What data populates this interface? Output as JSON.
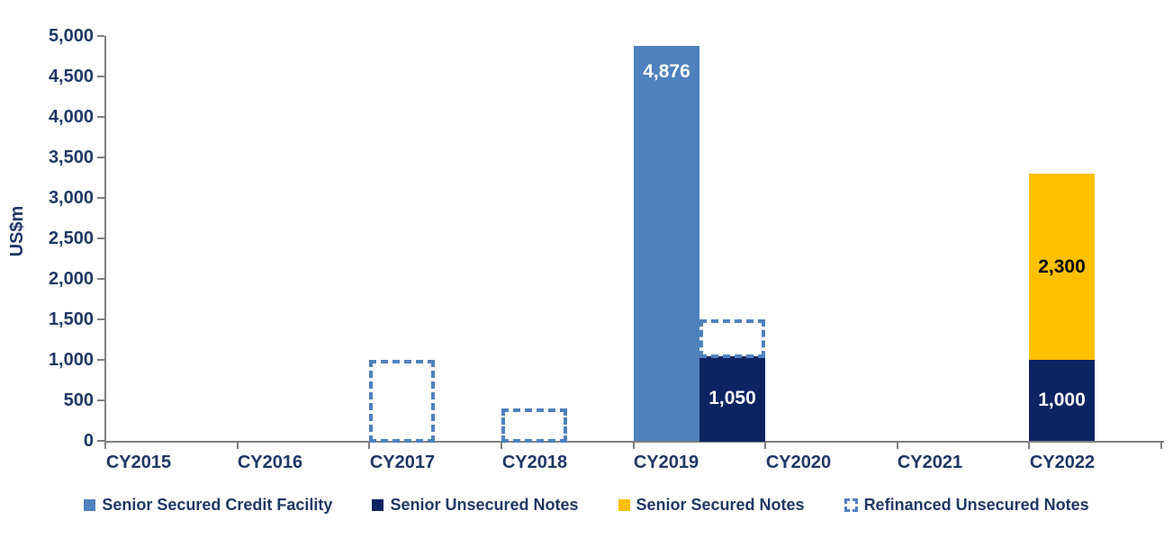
{
  "colors": {
    "steel_blue": "#4F81BD",
    "navy": "#0D2462",
    "gold": "#FFC000",
    "dashed_outline": "#4F81BD",
    "text_navy": "#1F3864",
    "axis_gray": "#808080",
    "background": "#FFFFFF"
  },
  "chart_data": {
    "type": "bar",
    "subtype": "clustered-stacked",
    "title": "",
    "xlabel": "",
    "ylabel": "US$m",
    "grid": false,
    "legend_position": "bottom",
    "categories": [
      "CY2015",
      "CY2016",
      "CY2017",
      "CY2018",
      "CY2019",
      "CY2020",
      "CY2021",
      "CY2022"
    ],
    "ylim": [
      0,
      5000
    ],
    "ytick_step": 500,
    "yticks": [
      "0",
      "500",
      "1,000",
      "1,500",
      "2,000",
      "2,500",
      "3,000",
      "3,500",
      "4,000",
      "4,500",
      "5,000"
    ],
    "series": [
      {
        "name": "Senior Secured Credit Facility",
        "color": "#4F81BD",
        "style": "solid",
        "values": [
          0,
          0,
          0,
          0,
          4876,
          0,
          0,
          0
        ]
      },
      {
        "name": "Senior Unsecured Notes",
        "color": "#0D2462",
        "style": "solid",
        "values": [
          0,
          0,
          0,
          0,
          1050,
          0,
          0,
          1000
        ]
      },
      {
        "name": "Senior Secured Notes",
        "color": "#FFC000",
        "style": "solid",
        "values": [
          0,
          0,
          0,
          0,
          0,
          0,
          0,
          2300
        ]
      },
      {
        "name": "Refinanced Unsecured Notes",
        "color": "#4F81BD",
        "style": "dashed-outline",
        "values": [
          0,
          0,
          1000,
          400,
          450,
          0,
          0,
          0
        ]
      }
    ],
    "bars": [
      {
        "category": "CY2017",
        "cat_index": 2,
        "slot": "left",
        "series": "Refinanced Unsecured Notes",
        "style": "dashed-outline",
        "from": 0,
        "to": 1000,
        "label": ""
      },
      {
        "category": "CY2018",
        "cat_index": 3,
        "slot": "left",
        "series": "Refinanced Unsecured Notes",
        "style": "dashed-outline",
        "from": 0,
        "to": 400,
        "label": ""
      },
      {
        "category": "CY2019",
        "cat_index": 4,
        "slot": "left",
        "series": "Senior Secured Credit Facility",
        "style": "solid",
        "color": "#4F81BD",
        "from": 0,
        "to": 4876,
        "label": "4,876",
        "label_color": "#FFFFFF",
        "label_pos": "top"
      },
      {
        "category": "CY2019",
        "cat_index": 4,
        "slot": "right",
        "series": "Senior Unsecured Notes",
        "style": "solid",
        "color": "#0D2462",
        "from": 0,
        "to": 1050,
        "label": "1,050",
        "label_color": "#FFFFFF",
        "label_pos": "middle"
      },
      {
        "category": "CY2019",
        "cat_index": 4,
        "slot": "right",
        "series": "Refinanced Unsecured Notes",
        "style": "dashed-outline",
        "from": 1050,
        "to": 1500,
        "label": ""
      },
      {
        "category": "CY2022",
        "cat_index": 7,
        "slot": "left",
        "series": "Senior Unsecured Notes",
        "style": "solid",
        "color": "#0D2462",
        "from": 0,
        "to": 1000,
        "label": "1,000",
        "label_color": "#FFFFFF",
        "label_pos": "middle"
      },
      {
        "category": "CY2022",
        "cat_index": 7,
        "slot": "left",
        "series": "Senior Secured Notes",
        "style": "solid",
        "color": "#FFC000",
        "from": 1000,
        "to": 3300,
        "label": "2,300",
        "label_color": "#000000",
        "label_pos": "middle"
      }
    ]
  }
}
